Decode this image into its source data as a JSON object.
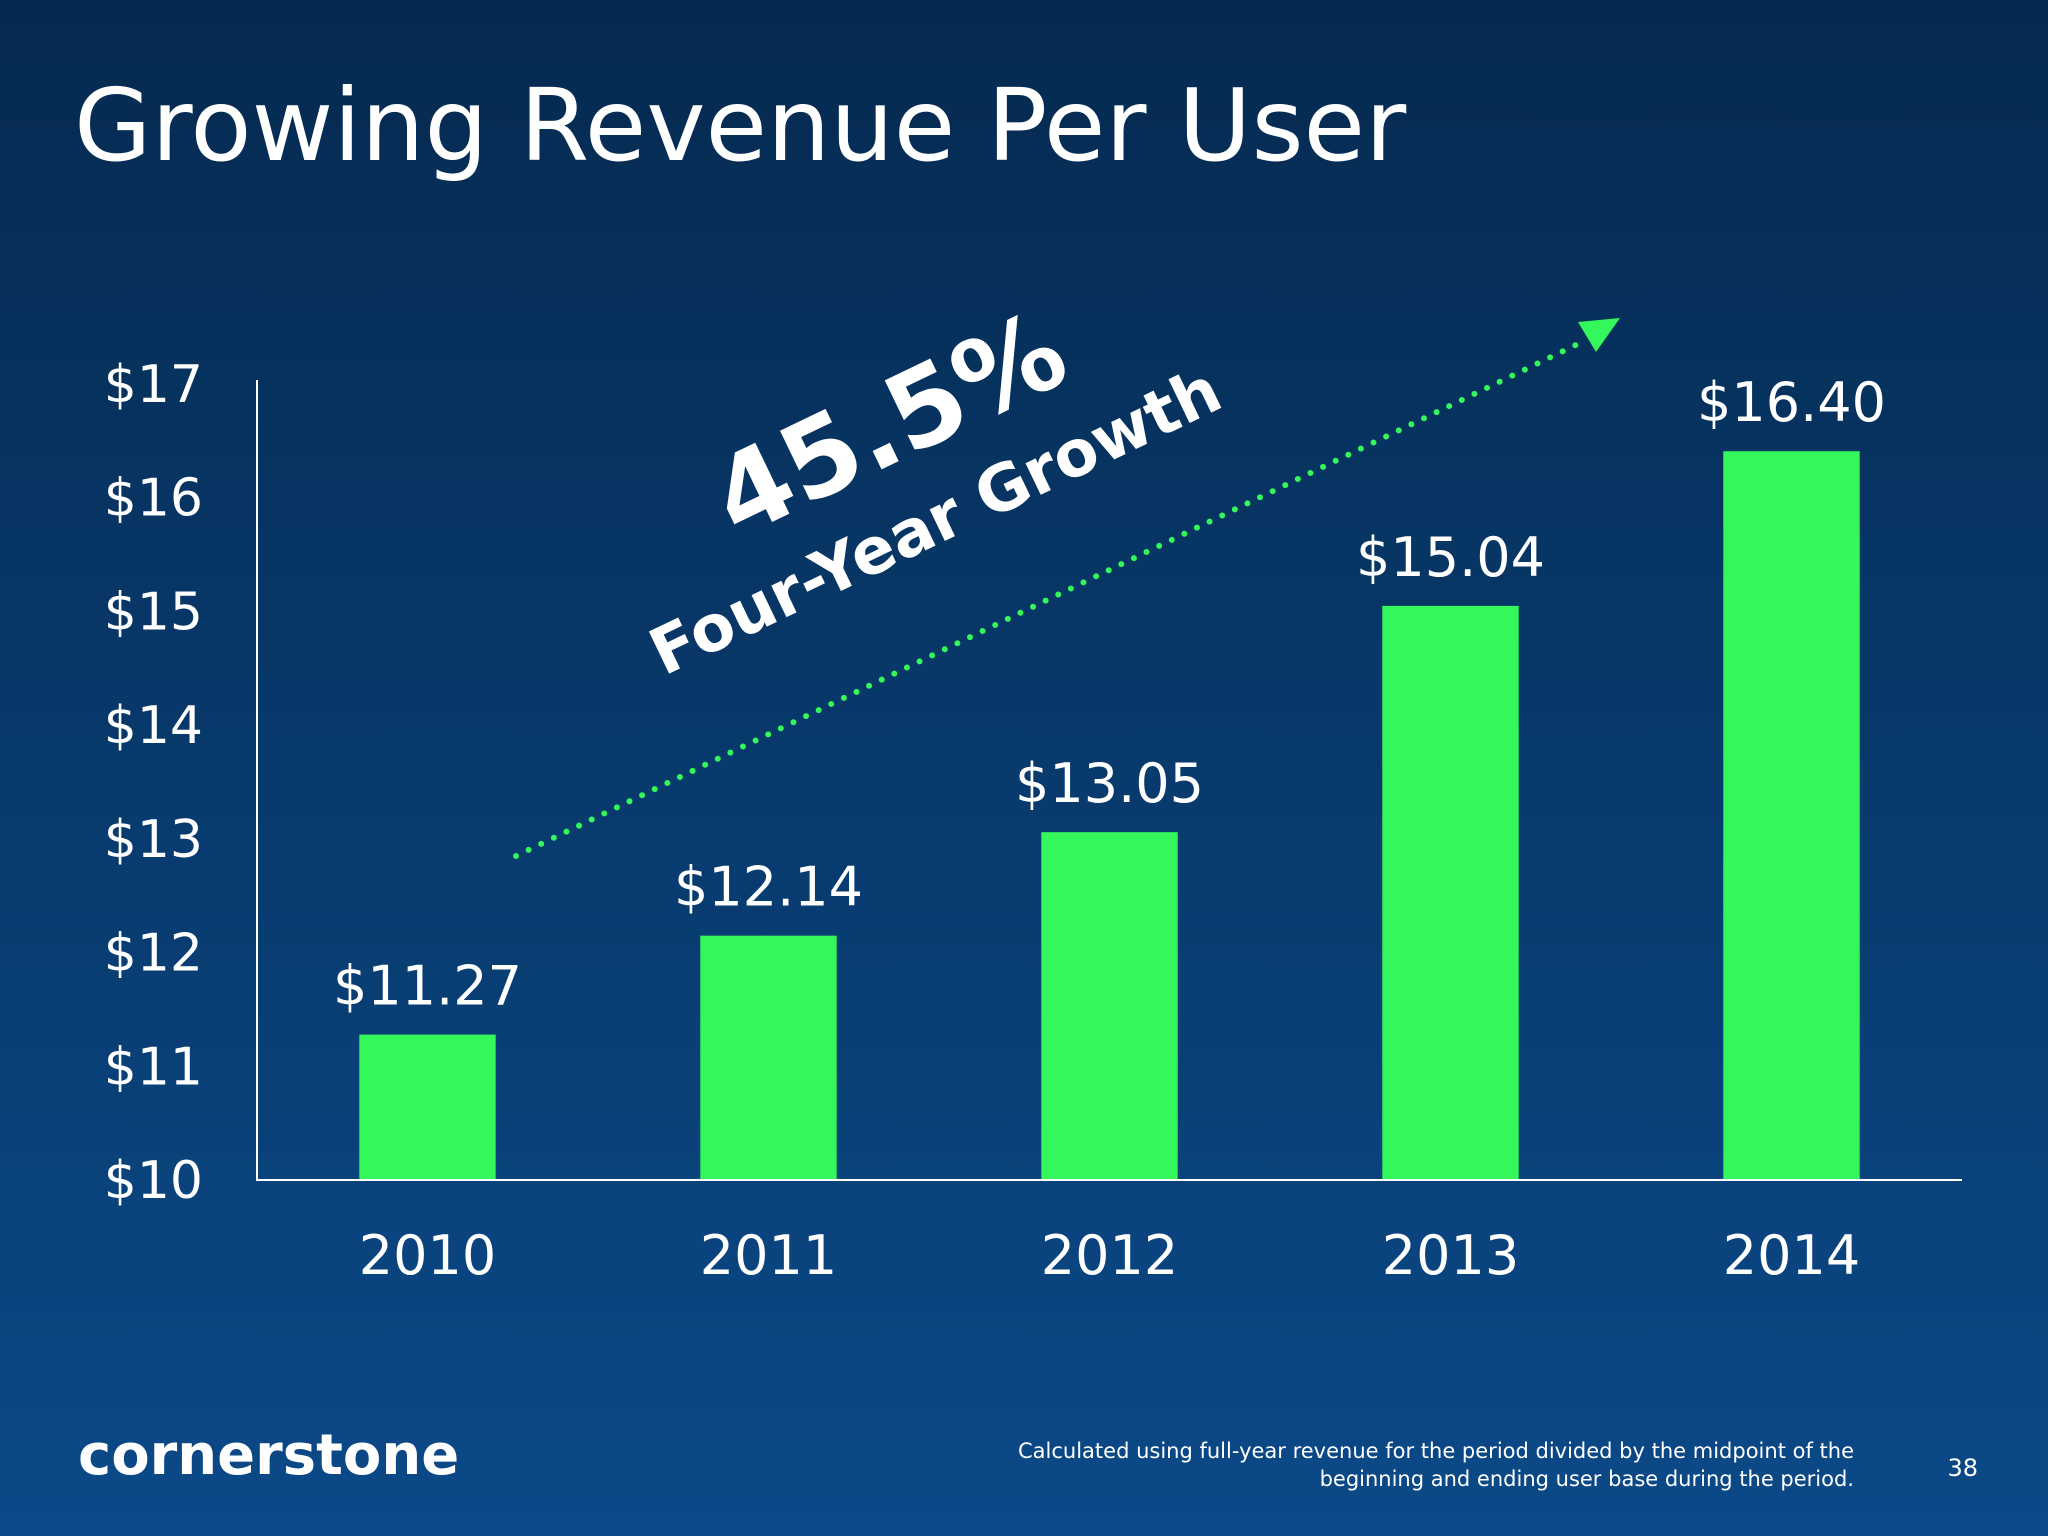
{
  "chart_data": {
    "type": "bar",
    "title": "Growing Revenue Per User",
    "categories": [
      "2010",
      "2011",
      "2012",
      "2013",
      "2014"
    ],
    "values": [
      11.27,
      12.14,
      13.05,
      15.04,
      16.4
    ],
    "value_labels": [
      "$11.27",
      "$12.14",
      "$13.05",
      "$15.04",
      "$16.40"
    ],
    "color": "#33f75b",
    "ylim": [
      10,
      17
    ],
    "yticks": [
      {
        "value": 10,
        "label": "$10"
      },
      {
        "value": 11,
        "label": "$11"
      },
      {
        "value": 12,
        "label": "$12"
      },
      {
        "value": 13,
        "label": "$13"
      },
      {
        "value": 14,
        "label": "$14"
      },
      {
        "value": 15,
        "label": "$15"
      },
      {
        "value": 16,
        "label": "$16"
      },
      {
        "value": 17,
        "label": "$17"
      }
    ],
    "grid": false,
    "annotations": [
      "45.5%",
      "Four-Year Growth"
    ]
  },
  "footer": {
    "logo": "cornerstone",
    "footnote": [
      "Calculated using full-year revenue for the period divided by the midpoint of the",
      "beginning and ending user base during the period."
    ],
    "page_number": "38"
  }
}
